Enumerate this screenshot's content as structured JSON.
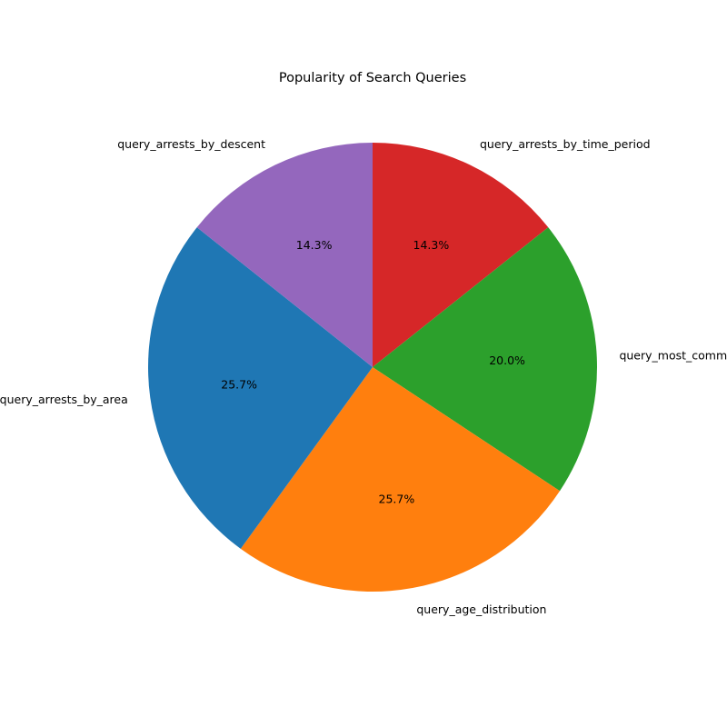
{
  "chart_data": {
    "type": "pie",
    "title": "Popularity of Search Queries",
    "start_angle_deg": 90,
    "direction": "clockwise",
    "slices": [
      {
        "label": "query_arrests_by_time_period",
        "value": 14.3,
        "pct_label": "14.3%",
        "color": "#d62728"
      },
      {
        "label": "query_most_common_charges",
        "value": 20.0,
        "pct_label": "20.0%",
        "color": "#2ca02c"
      },
      {
        "label": "query_age_distribution",
        "value": 25.7,
        "pct_label": "25.7%",
        "color": "#ff7f0e"
      },
      {
        "label": "query_arrests_by_area",
        "value": 25.7,
        "pct_label": "25.7%",
        "color": "#1f77b4"
      },
      {
        "label": "query_arrests_by_descent",
        "value": 14.3,
        "pct_label": "14.3%",
        "color": "#9467bd"
      }
    ]
  }
}
